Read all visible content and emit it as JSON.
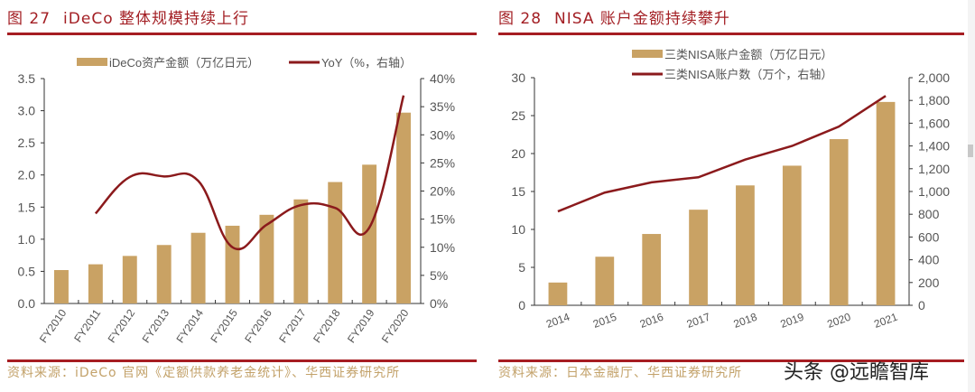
{
  "left": {
    "fig_num": "图 27",
    "title": "iDeCo 整体规模持续上行",
    "source": "资料来源：iDeCo 官网《定额供款养老金统计》、华西证券研究所"
  },
  "right": {
    "fig_num": "图 28",
    "title": "NISA 账户金额持续攀升",
    "source": "资料来源：日本金融厅、华西证券研究所"
  },
  "watermark": "头条 @远瞻智库",
  "colors": {
    "bar": "#c9a264",
    "line": "#8b1a1c",
    "rule": "#a61d22",
    "title": "#a31f24",
    "source": "#c3a26a"
  },
  "chart_data": [
    {
      "type": "bar",
      "categories": [
        "FY2010",
        "FY2011",
        "FY2012",
        "FY2013",
        "FY2014",
        "FY2015",
        "FY2016",
        "FY2017",
        "FY2018",
        "FY2019",
        "FY2020"
      ],
      "series": [
        {
          "name": "iDeCo资产金额（万亿日元）",
          "kind": "bar",
          "axis": "left",
          "values": [
            0.52,
            0.61,
            0.74,
            0.91,
            1.1,
            1.21,
            1.38,
            1.62,
            1.89,
            2.16,
            2.97
          ]
        },
        {
          "name": "YoY（%，右轴）",
          "kind": "line",
          "axis": "right",
          "values": [
            null,
            16.0,
            22.5,
            22.6,
            21.8,
            10.0,
            14.0,
            17.5,
            17.0,
            13.5,
            37.0
          ]
        }
      ],
      "ylim": [
        0,
        3.5
      ],
      "yticks": [
        "0.0",
        "0.5",
        "1.0",
        "1.5",
        "2.0",
        "2.5",
        "3.0",
        "3.5"
      ],
      "y2lim": [
        0,
        40
      ],
      "y2ticks": [
        "0%",
        "5%",
        "10%",
        "15%",
        "20%",
        "25%",
        "30%",
        "35%",
        "40%"
      ],
      "legend": "top",
      "grid": false
    },
    {
      "type": "bar",
      "categories": [
        "2014",
        "2015",
        "2016",
        "2017",
        "2018",
        "2019",
        "2020",
        "2021"
      ],
      "series": [
        {
          "name": "三类NISA账户金额（万亿日元）",
          "kind": "bar",
          "axis": "left",
          "values": [
            3.0,
            6.4,
            9.4,
            12.6,
            15.8,
            18.4,
            21.9,
            26.8
          ]
        },
        {
          "name": "三类NISA账户数（万个，右轴）",
          "kind": "line",
          "axis": "right",
          "values": [
            825,
            990,
            1080,
            1125,
            1280,
            1400,
            1570,
            1840
          ]
        }
      ],
      "ylim": [
        0,
        30
      ],
      "yticks": [
        "0",
        "5",
        "10",
        "15",
        "20",
        "25",
        "30"
      ],
      "y2lim": [
        0,
        2000
      ],
      "y2ticks": [
        "0",
        "200",
        "400",
        "600",
        "800",
        "1,000",
        "1,200",
        "1,400",
        "1,600",
        "1,800",
        "2,000"
      ],
      "legend": "top",
      "grid": false
    }
  ]
}
